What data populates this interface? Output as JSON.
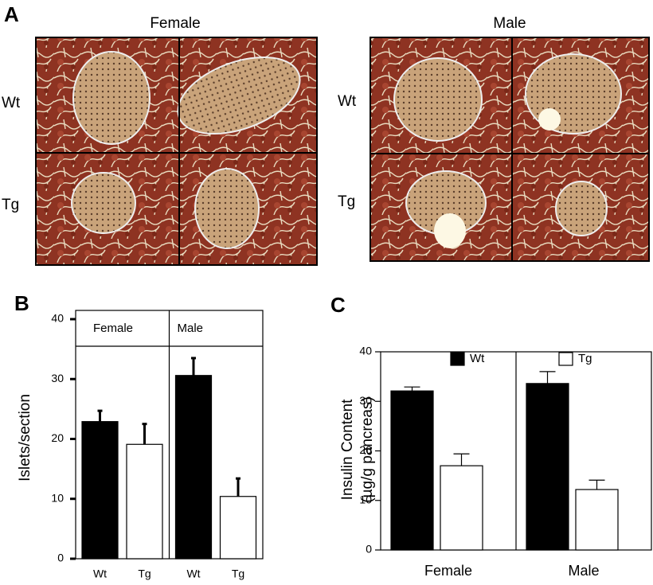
{
  "panel_a": {
    "label": "A",
    "columns": [
      "Female",
      "Male"
    ],
    "rows": [
      "Wt",
      "Tg"
    ]
  },
  "chart_data": [
    {
      "type": "bar",
      "label": "B",
      "ylabel": "Islets/section",
      "categories": [
        "Female",
        "Male"
      ],
      "series": [
        {
          "name": "Wt",
          "color": "#000000",
          "values": [
            22.9,
            30.6
          ],
          "errors": [
            1.8,
            2.9
          ]
        },
        {
          "name": "Tg",
          "color": "#ffffff",
          "values": [
            19.1,
            10.4
          ],
          "errors": [
            3.4,
            3.0
          ]
        }
      ],
      "ylim": [
        0,
        40
      ],
      "yticks": [
        0,
        10,
        20,
        30,
        40
      ],
      "legend": false
    },
    {
      "type": "bar",
      "label": "C",
      "ylabel": [
        "Insulin Content",
        "(µg/g pancreas)"
      ],
      "categories": [
        "Female",
        "Male"
      ],
      "series": [
        {
          "name": "Wt",
          "color": "#000000",
          "values": [
            32.1,
            33.6
          ],
          "errors": [
            0.8,
            2.4
          ]
        },
        {
          "name": "Tg",
          "color": "#ffffff",
          "values": [
            17.0,
            12.2
          ],
          "errors": [
            2.4,
            1.9
          ]
        }
      ],
      "ylim": [
        0,
        40
      ],
      "yticks": [
        0,
        10,
        20,
        30,
        40
      ],
      "legend": "top"
    }
  ]
}
